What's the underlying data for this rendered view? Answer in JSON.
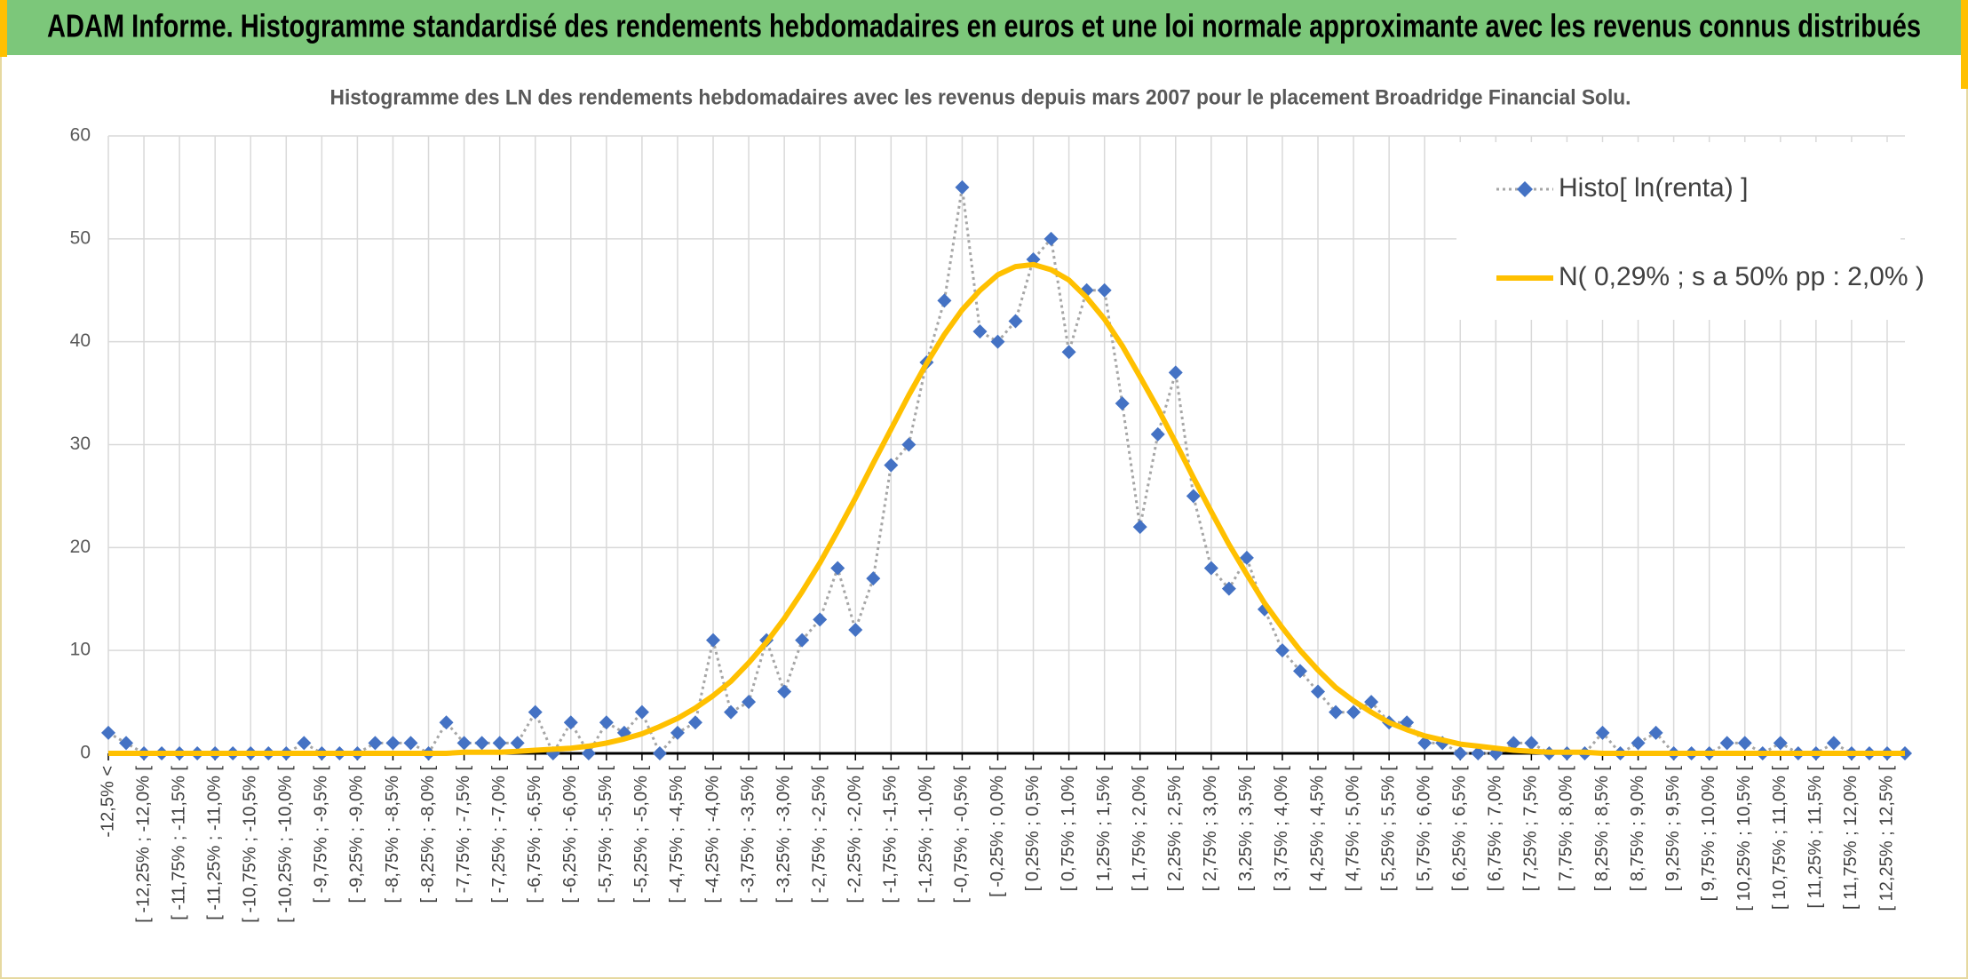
{
  "header": {
    "title": "ADAM Informe. Histogramme standardisé des rendements hebdomadaires en euros et une loi normale approximante avec les revenus connus distribués"
  },
  "chart_data": {
    "type": "line",
    "title": "Histogramme des LN des rendements hebdomadaires avec les revenus depuis mars 2007 pour le placement Broadridge Financial Solu.",
    "categories": [
      "-12,5% <",
      null,
      "[ -12,25% ; -12,0% [",
      null,
      "[ -11,75% ; -11,5% [",
      null,
      "[ -11,25% ; -11,0% [",
      null,
      "[ -10,75% ; -10,5% [",
      null,
      "[ -10,25% ; -10,0% [",
      null,
      "[ -9,75% ; -9,5% [",
      null,
      "[ -9,25% ; -9,0% [",
      null,
      "[ -8,75% ; -8,5% [",
      null,
      "[ -8,25% ; -8,0% [",
      null,
      "[ -7,75% ; -7,5% [",
      null,
      "[ -7,25% ; -7,0% [",
      null,
      "[ -6,75% ; -6,5% [",
      null,
      "[ -6,25% ; -6,0% [",
      null,
      "[ -5,75% ; -5,5% [",
      null,
      "[ -5,25% ; -5,0% [",
      null,
      "[ -4,75% ; -4,5% [",
      null,
      "[ -4,25% ; -4,0% [",
      null,
      "[ -3,75% ; -3,5% [",
      null,
      "[ -3,25% ; -3,0% [",
      null,
      "[ -2,75% ; -2,5% [",
      null,
      "[ -2,25% ; -2,0% [",
      null,
      "[ -1,75% ; -1,5% [",
      null,
      "[ -1,25% ; -1,0% [",
      null,
      "[ -0,75% ; -0,5% [",
      null,
      "[ -0,25% ; 0,0% [",
      null,
      "[ 0,25% ; 0,5% [",
      null,
      "[ 0,75% ; 1,0% [",
      null,
      "[ 1,25% ; 1,5% [",
      null,
      "[ 1,75% ; 2,0% [",
      null,
      "[ 2,25% ; 2,5% [",
      null,
      "[ 2,75% ; 3,0% [",
      null,
      "[ 3,25% ; 3,5% [",
      null,
      "[ 3,75% ; 4,0% [",
      null,
      "[ 4,25% ; 4,5% [",
      null,
      "[ 4,75% ; 5,0% [",
      null,
      "[ 5,25% ; 5,5% [",
      null,
      "[ 5,75% ; 6,0% [",
      null,
      "[ 6,25% ; 6,5% [",
      null,
      "[ 6,75% ; 7,0% [",
      null,
      "[ 7,25% ; 7,5% [",
      null,
      "[ 7,75% ; 8,0% [",
      null,
      "[ 8,25% ; 8,5% [",
      null,
      "[ 8,75% ; 9,0% [",
      null,
      "[ 9,25% ; 9,5% [",
      null,
      "[ 9,75% ; 10,0% [",
      null,
      "[ 10,25% ; 10,5% [",
      null,
      "[ 10,75% ; 11,0% [",
      null,
      "[ 11,25% ; 11,5% [",
      null,
      "[ 11,75% ; 12,0% [",
      null,
      "[ 12,25% ; 12,5% [",
      null
    ],
    "series": [
      {
        "name": "Histo[ ln(renta) ]",
        "color": "#4472c4",
        "line_color": "#a6a6a6",
        "values": [
          2,
          1,
          0,
          0,
          0,
          0,
          0,
          0,
          0,
          0,
          0,
          1,
          0,
          0,
          0,
          1,
          1,
          1,
          0,
          3,
          1,
          1,
          1,
          1,
          4,
          0,
          3,
          0,
          3,
          2,
          4,
          0,
          2,
          3,
          11,
          4,
          5,
          11,
          6,
          11,
          13,
          18,
          12,
          17,
          28,
          30,
          38,
          44,
          55,
          41,
          40,
          42,
          48,
          50,
          39,
          45,
          45,
          34,
          22,
          31,
          37,
          25,
          18,
          16,
          19,
          14,
          10,
          8,
          6,
          4,
          4,
          5,
          3,
          3,
          1,
          1,
          0,
          0,
          0,
          1,
          1,
          0,
          0,
          0,
          2,
          0,
          1,
          2,
          0,
          0,
          0,
          1,
          1,
          0,
          1,
          0,
          0,
          1,
          0,
          0,
          0,
          0
        ]
      },
      {
        "name": "N( 0,29% ; s a 50% pp : 2,0% )",
        "color": "#ffc000",
        "values": [
          0,
          0,
          0,
          0,
          0,
          0,
          0,
          0,
          0,
          0,
          0,
          0,
          0,
          0,
          0,
          0,
          0,
          0,
          0,
          0,
          0.1,
          0.1,
          0.1,
          0.2,
          0.3,
          0.4,
          0.5,
          0.7,
          1.0,
          1.4,
          1.9,
          2.6,
          3.4,
          4.4,
          5.6,
          7.0,
          8.8,
          10.8,
          13.1,
          15.7,
          18.5,
          21.6,
          24.8,
          28.2,
          31.5,
          34.8,
          37.9,
          40.7,
          43.1,
          45.0,
          46.5,
          47.3,
          47.5,
          47.0,
          46.0,
          44.3,
          42.2,
          39.6,
          36.6,
          33.5,
          30.2,
          26.8,
          23.5,
          20.3,
          17.4,
          14.6,
          12.2,
          10.0,
          8.1,
          6.4,
          5.1,
          4.0,
          3.0,
          2.3,
          1.7,
          1.3,
          0.9,
          0.7,
          0.5,
          0.3,
          0.2,
          0.1,
          0.1,
          0.1,
          0,
          0,
          0,
          0,
          0,
          0,
          0,
          0,
          0,
          0,
          0,
          0,
          0,
          0,
          0,
          0,
          0,
          0
        ]
      }
    ],
    "ylim": [
      0,
      60
    ],
    "yticks": [
      0,
      10,
      20,
      30,
      40,
      50,
      60
    ],
    "grid": true,
    "legend": "upper right"
  }
}
